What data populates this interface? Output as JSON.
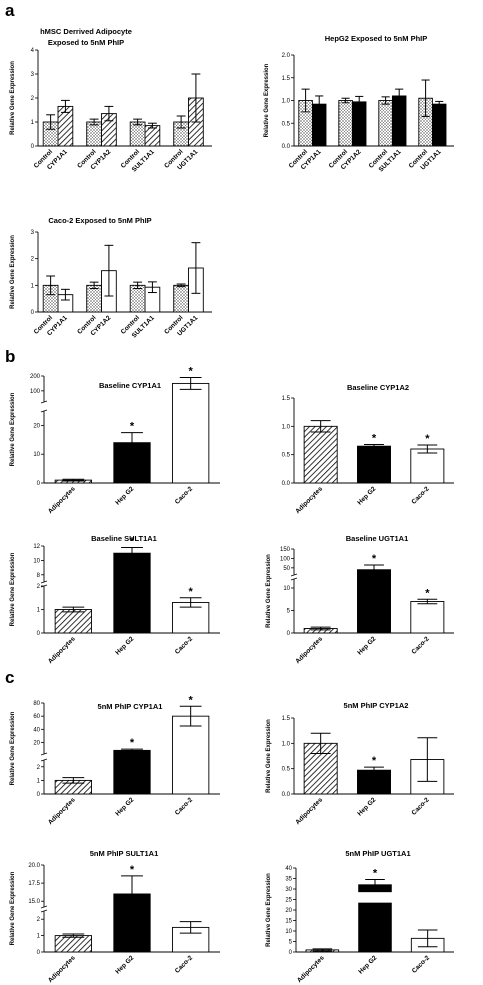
{
  "panels": [
    {
      "letter": "a"
    },
    {
      "letter": "b"
    },
    {
      "letter": "c"
    }
  ],
  "chart_data": [
    {
      "type": "bar",
      "panel": "a",
      "title": [
        "hMSC Derrived Adipocyte",
        "Exposed to 5nM PhIP"
      ],
      "ylabel": "Relative Gene Expression",
      "yticks": [
        "0",
        "1",
        "2",
        "3",
        "4"
      ],
      "ylim": [
        0,
        4
      ],
      "categories": [
        "Control",
        "CYP1A1",
        "Control",
        "CYP1A2",
        "Control",
        "SULT1A1",
        "Control",
        "UGT1A1"
      ],
      "values": [
        1.0,
        1.65,
        1.0,
        1.35,
        1.0,
        0.85,
        1.0,
        2.0
      ],
      "errors": [
        0.3,
        0.25,
        0.12,
        0.3,
        0.12,
        0.1,
        0.25,
        1.0
      ],
      "fills": [
        "dots",
        "hatch",
        "dots",
        "hatch",
        "dots",
        "hatch",
        "dots",
        "hatch"
      ]
    },
    {
      "type": "bar",
      "panel": "a",
      "title": [
        "HepG2 Exposed to 5nM PhIP"
      ],
      "ylabel": "Relative Gene Expression",
      "yticks": [
        "0.0",
        "0.5",
        "1.0",
        "1.5",
        "2.0"
      ],
      "ylim": [
        0,
        2
      ],
      "categories": [
        "Control",
        "CYP1A1",
        "Control",
        "CYP1A2",
        "Control",
        "SULT1A1",
        "Control",
        "UGT1A1"
      ],
      "values": [
        1.0,
        0.92,
        1.0,
        0.97,
        1.0,
        1.1,
        1.05,
        0.92
      ],
      "errors": [
        0.25,
        0.18,
        0.05,
        0.12,
        0.08,
        0.15,
        0.4,
        0.06
      ],
      "fills": [
        "dots",
        "black",
        "dots",
        "black",
        "dots",
        "black",
        "dots",
        "black"
      ]
    },
    {
      "type": "bar",
      "panel": "a",
      "title": [
        "Caco-2 Exposed to 5nM PhIP"
      ],
      "ylabel": "Relative Gene Expression",
      "yticks": [
        "0",
        "1",
        "2",
        "3"
      ],
      "ylim": [
        0,
        3
      ],
      "categories": [
        "Control",
        "CYP1A1",
        "Control",
        "CYP1A2",
        "Control",
        "SULT1A1",
        "Control",
        "UGT1A1"
      ],
      "values": [
        1.0,
        0.65,
        1.0,
        1.55,
        1.0,
        0.93,
        1.0,
        1.65
      ],
      "errors": [
        0.35,
        0.2,
        0.12,
        0.95,
        0.12,
        0.2,
        0.05,
        0.95
      ],
      "fills": [
        "dots",
        "white",
        "dots",
        "white",
        "dots",
        "white",
        "dots",
        "white"
      ]
    },
    {
      "type": "bar",
      "panel": "b",
      "title": [
        "Baseline CYP1A1"
      ],
      "ylabel": "Relative Gene Expression",
      "yticks_upper": [
        "100",
        "200"
      ],
      "yticks_lower": [
        "0",
        "10",
        "20"
      ],
      "upper_range": [
        25,
        200
      ],
      "lower_range": [
        0,
        25
      ],
      "categories": [
        "Adipocytes",
        "Hep G2",
        "Caco-2"
      ],
      "values": [
        1.0,
        14.0,
        150.0
      ],
      "errors": [
        0.3,
        3.5,
        40.0
      ],
      "fills": [
        "hatch",
        "black",
        "white"
      ],
      "stars": [
        "",
        "*",
        "*"
      ]
    },
    {
      "type": "bar",
      "panel": "b",
      "title": [
        "Baseline CYP1A2"
      ],
      "ylabel": "",
      "yticks": [
        "0.0",
        "0.5",
        "1.0",
        "1.5"
      ],
      "ylim": [
        0,
        1.5
      ],
      "categories": [
        "Adipocytes",
        "Hep G2",
        "Caco-2"
      ],
      "values": [
        1.0,
        0.65,
        0.6
      ],
      "errors": [
        0.1,
        0.03,
        0.07
      ],
      "fills": [
        "hatch",
        "black",
        "white"
      ],
      "stars": [
        "",
        "*",
        "*"
      ]
    },
    {
      "type": "bar",
      "panel": "b",
      "title": [
        "Baseline SULT1A1"
      ],
      "ylabel": "Relative Gene Expression",
      "yticks_upper": [
        "8",
        "10",
        "12"
      ],
      "yticks_lower": [
        "0",
        "1",
        "2"
      ],
      "upper_range": [
        7,
        12
      ],
      "lower_range": [
        0,
        2
      ],
      "categories": [
        "Adipocytes",
        "Hep G2",
        "Caco-2"
      ],
      "values": [
        1.0,
        11.0,
        1.3
      ],
      "errors": [
        0.1,
        0.8,
        0.2
      ],
      "fills": [
        "hatch",
        "black",
        "white"
      ],
      "stars": [
        "",
        "*",
        "*"
      ]
    },
    {
      "type": "bar",
      "panel": "b",
      "title": [
        "Baseline UGT1A1"
      ],
      "ylabel": "Relative Gene Expression",
      "yticks_upper": [
        "50",
        "100",
        "150"
      ],
      "yticks_lower": [
        "0",
        "5",
        "10"
      ],
      "upper_range": [
        12,
        150
      ],
      "lower_range": [
        0,
        12
      ],
      "categories": [
        "Adipocytes",
        "Hep G2",
        "Caco-2"
      ],
      "values": [
        1.0,
        40.0,
        7.0
      ],
      "errors": [
        0.3,
        25.0,
        0.5
      ],
      "fills": [
        "hatch",
        "black",
        "white"
      ],
      "stars": [
        "",
        "*",
        "*"
      ]
    },
    {
      "type": "bar",
      "panel": "c",
      "title": [
        "5nM PhIP CYP1A1"
      ],
      "ylabel": "Relative Gene Expression",
      "yticks_upper": [
        "20",
        "40",
        "60",
        "80"
      ],
      "yticks_lower": [
        "0",
        "1",
        "2"
      ],
      "upper_range": [
        2.5,
        80
      ],
      "lower_range": [
        0,
        2.5
      ],
      "categories": [
        "Adipocytes",
        "Hep G2",
        "Caco-2"
      ],
      "values": [
        1.0,
        8.0,
        60.0
      ],
      "errors": [
        0.2,
        2.0,
        15.0
      ],
      "fills": [
        "hatch",
        "black",
        "white"
      ],
      "stars": [
        "",
        "*",
        "*"
      ]
    },
    {
      "type": "bar",
      "panel": "c",
      "title": [
        "5nM PhIP CYP1A2"
      ],
      "ylabel": "Relative Gene Expression",
      "yticks": [
        "0.0",
        "0.5",
        "1.0",
        "1.5"
      ],
      "ylim": [
        0,
        1.5
      ],
      "categories": [
        "Adipocytes",
        "Hep G2",
        "Caco-2"
      ],
      "values": [
        1.0,
        0.47,
        0.68
      ],
      "errors": [
        0.2,
        0.06,
        0.43
      ],
      "fills": [
        "hatch",
        "black",
        "white"
      ],
      "stars": [
        "",
        "*",
        ""
      ]
    },
    {
      "type": "bar",
      "panel": "c",
      "title": [
        "5nM PhIP SULT1A1"
      ],
      "ylabel": "Relative Gene Expression",
      "yticks_upper": [
        "15.0",
        "17.5",
        "20.0"
      ],
      "yticks_lower": [
        "0",
        "1",
        "2"
      ],
      "upper_range": [
        14.2,
        20
      ],
      "lower_range": [
        0,
        2.5
      ],
      "categories": [
        "Adipocytes",
        "Hep G2",
        "Caco-2"
      ],
      "values": [
        1.0,
        16.0,
        1.5
      ],
      "errors": [
        0.1,
        2.5,
        0.35
      ],
      "fills": [
        "hatch",
        "black",
        "white"
      ],
      "stars": [
        "",
        "*",
        ""
      ]
    },
    {
      "type": "bar",
      "panel": "c",
      "title": [
        "5nM PhIP UGT1A1"
      ],
      "ylabel": "Relative Gene Expression",
      "yticks": [
        "0",
        "5",
        "10",
        "15",
        "20",
        "25",
        "30",
        "35",
        "40"
      ],
      "ylim": [
        0,
        40
      ],
      "categories": [
        "Adipocytes",
        "Hep G2",
        "Caco-2"
      ],
      "values": [
        1.0,
        32.0,
        6.5
      ],
      "errors": [
        0.5,
        2.5,
        4.0
      ],
      "fills": [
        "hatch",
        "black",
        "white"
      ],
      "stars": [
        "",
        "*",
        ""
      ],
      "break_gap": [
        23.5,
        28.5
      ]
    }
  ]
}
